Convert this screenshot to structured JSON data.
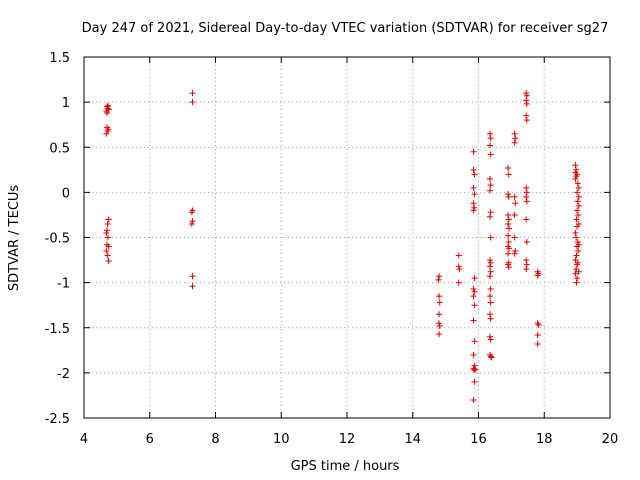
{
  "chart_data": {
    "type": "scatter",
    "title": "Day 247 of 2021, Sidereal Day-to-day VTEC variation (SDTVAR) for receiver sg27",
    "xlabel": "GPS time / hours",
    "ylabel": "SDTVAR / TECUs",
    "xlim": [
      4,
      20
    ],
    "ylim": [
      -2.5,
      1.5
    ],
    "xticks": [
      4,
      6,
      8,
      10,
      12,
      14,
      16,
      18,
      20
    ],
    "xtick_labels": [
      "4",
      "6",
      "8",
      "10",
      "12",
      "14",
      "16",
      "18",
      "20"
    ],
    "yticks": [
      -2.5,
      -2,
      -1.5,
      -1,
      -0.5,
      0,
      0.5,
      1,
      1.5
    ],
    "ytick_labels": [
      "-2.5",
      "-2",
      "-1.5",
      "-1",
      "-0.5",
      "0",
      "0.5",
      "1",
      "1.5"
    ],
    "grid": true,
    "marker": "+",
    "color": "#e00000",
    "series": [
      {
        "name": "sg27",
        "points": [
          [
            4.7,
            0.95
          ],
          [
            4.72,
            0.93
          ],
          [
            4.68,
            0.9
          ],
          [
            4.75,
            0.92
          ],
          [
            4.7,
            0.88
          ],
          [
            4.73,
            0.96
          ],
          [
            4.7,
            0.72
          ],
          [
            4.72,
            0.68
          ],
          [
            4.68,
            0.65
          ],
          [
            4.74,
            0.7
          ],
          [
            4.75,
            -0.3
          ],
          [
            4.72,
            -0.35
          ],
          [
            4.7,
            -0.42
          ],
          [
            4.68,
            -0.45
          ],
          [
            4.73,
            -0.5
          ],
          [
            4.7,
            -0.58
          ],
          [
            4.75,
            -0.6
          ],
          [
            4.68,
            -0.65
          ],
          [
            4.72,
            -0.7
          ],
          [
            4.75,
            -0.76
          ],
          [
            7.3,
            1.1
          ],
          [
            7.3,
            1.0
          ],
          [
            7.3,
            -0.2
          ],
          [
            7.28,
            -0.22
          ],
          [
            7.3,
            -0.32
          ],
          [
            7.28,
            -0.35
          ],
          [
            7.3,
            -0.93
          ],
          [
            7.3,
            -1.04
          ],
          [
            14.8,
            -0.93
          ],
          [
            14.78,
            -0.97
          ],
          [
            14.8,
            -1.15
          ],
          [
            14.82,
            -1.22
          ],
          [
            14.8,
            -1.35
          ],
          [
            14.8,
            -1.45
          ],
          [
            14.82,
            -1.48
          ],
          [
            14.8,
            -1.57
          ],
          [
            15.4,
            -0.7
          ],
          [
            15.4,
            -0.82
          ],
          [
            15.42,
            -0.85
          ],
          [
            15.4,
            -1.0
          ],
          [
            15.85,
            0.45
          ],
          [
            15.85,
            0.25
          ],
          [
            15.88,
            0.2
          ],
          [
            15.85,
            0.05
          ],
          [
            15.88,
            -0.02
          ],
          [
            15.85,
            -0.12
          ],
          [
            15.87,
            -0.17
          ],
          [
            15.85,
            -0.2
          ],
          [
            15.88,
            -0.95
          ],
          [
            15.85,
            -1.07
          ],
          [
            15.88,
            -1.1
          ],
          [
            15.85,
            -1.15
          ],
          [
            15.88,
            -1.25
          ],
          [
            15.85,
            -1.42
          ],
          [
            15.88,
            -1.65
          ],
          [
            15.85,
            -1.8
          ],
          [
            15.88,
            -1.92
          ],
          [
            15.85,
            -1.95
          ],
          [
            15.87,
            -1.97
          ],
          [
            15.9,
            -1.96
          ],
          [
            15.88,
            -2.1
          ],
          [
            15.85,
            -2.3
          ],
          [
            16.35,
            0.65
          ],
          [
            16.37,
            0.6
          ],
          [
            16.35,
            0.52
          ],
          [
            16.37,
            0.42
          ],
          [
            16.35,
            0.15
          ],
          [
            16.37,
            0.08
          ],
          [
            16.35,
            0.02
          ],
          [
            16.37,
            -0.22
          ],
          [
            16.35,
            -0.27
          ],
          [
            16.37,
            -0.5
          ],
          [
            16.35,
            -0.75
          ],
          [
            16.37,
            -0.78
          ],
          [
            16.35,
            -0.82
          ],
          [
            16.37,
            -0.88
          ],
          [
            16.35,
            -0.93
          ],
          [
            16.37,
            -1.07
          ],
          [
            16.35,
            -1.15
          ],
          [
            16.37,
            -1.22
          ],
          [
            16.35,
            -1.35
          ],
          [
            16.37,
            -1.4
          ],
          [
            16.35,
            -1.6
          ],
          [
            16.37,
            -1.63
          ],
          [
            16.35,
            -1.8
          ],
          [
            16.38,
            -1.82
          ],
          [
            16.4,
            -1.83
          ],
          [
            16.9,
            0.27
          ],
          [
            16.92,
            0.2
          ],
          [
            16.9,
            -0.02
          ],
          [
            16.92,
            -0.05
          ],
          [
            16.9,
            -0.25
          ],
          [
            16.92,
            -0.3
          ],
          [
            16.9,
            -0.35
          ],
          [
            16.93,
            -0.4
          ],
          [
            16.9,
            -0.48
          ],
          [
            16.92,
            -0.55
          ],
          [
            16.9,
            -0.6
          ],
          [
            16.93,
            -0.62
          ],
          [
            16.9,
            -0.68
          ],
          [
            16.92,
            -0.78
          ],
          [
            16.9,
            -0.8
          ],
          [
            16.92,
            -0.83
          ],
          [
            17.1,
            0.65
          ],
          [
            17.12,
            0.6
          ],
          [
            17.1,
            0.55
          ],
          [
            17.1,
            -0.05
          ],
          [
            17.12,
            -0.12
          ],
          [
            17.1,
            -0.25
          ],
          [
            17.1,
            -0.5
          ],
          [
            17.12,
            -0.65
          ],
          [
            17.1,
            -0.68
          ],
          [
            17.45,
            1.1
          ],
          [
            17.47,
            1.07
          ],
          [
            17.45,
            1.02
          ],
          [
            17.47,
            0.98
          ],
          [
            17.45,
            0.85
          ],
          [
            17.47,
            0.8
          ],
          [
            17.45,
            0.05
          ],
          [
            17.47,
            0.0
          ],
          [
            17.45,
            -0.05
          ],
          [
            17.47,
            -0.1
          ],
          [
            17.45,
            -0.3
          ],
          [
            17.47,
            -0.55
          ],
          [
            17.45,
            -0.75
          ],
          [
            17.47,
            -0.8
          ],
          [
            17.45,
            -0.85
          ],
          [
            17.8,
            -0.88
          ],
          [
            17.82,
            -0.9
          ],
          [
            17.8,
            -0.92
          ],
          [
            17.8,
            -1.45
          ],
          [
            17.83,
            -1.47
          ],
          [
            17.8,
            -1.58
          ],
          [
            17.8,
            -1.68
          ],
          [
            18.95,
            0.3
          ],
          [
            18.97,
            0.25
          ],
          [
            18.95,
            0.22
          ],
          [
            19.0,
            0.2
          ],
          [
            18.98,
            0.18
          ],
          [
            18.95,
            0.15
          ],
          [
            19.02,
            0.1
          ],
          [
            19.05,
            0.05
          ],
          [
            19.0,
            0.0
          ],
          [
            19.05,
            -0.05
          ],
          [
            19.02,
            -0.1
          ],
          [
            19.05,
            -0.15
          ],
          [
            19.0,
            -0.2
          ],
          [
            19.03,
            -0.25
          ],
          [
            18.98,
            -0.3
          ],
          [
            19.05,
            -0.35
          ],
          [
            19.0,
            -0.38
          ],
          [
            18.95,
            -0.45
          ],
          [
            18.97,
            -0.5
          ],
          [
            19.02,
            -0.55
          ],
          [
            19.05,
            -0.58
          ],
          [
            19.0,
            -0.6
          ],
          [
            19.03,
            -0.65
          ],
          [
            18.98,
            -0.7
          ],
          [
            18.95,
            -0.75
          ],
          [
            19.0,
            -0.8
          ],
          [
            18.97,
            -0.85
          ],
          [
            18.95,
            -0.9
          ],
          [
            19.0,
            -0.95
          ],
          [
            18.98,
            -1.0
          ],
          [
            19.05,
            -0.88
          ],
          [
            19.02,
            -0.78
          ]
        ]
      }
    ]
  }
}
